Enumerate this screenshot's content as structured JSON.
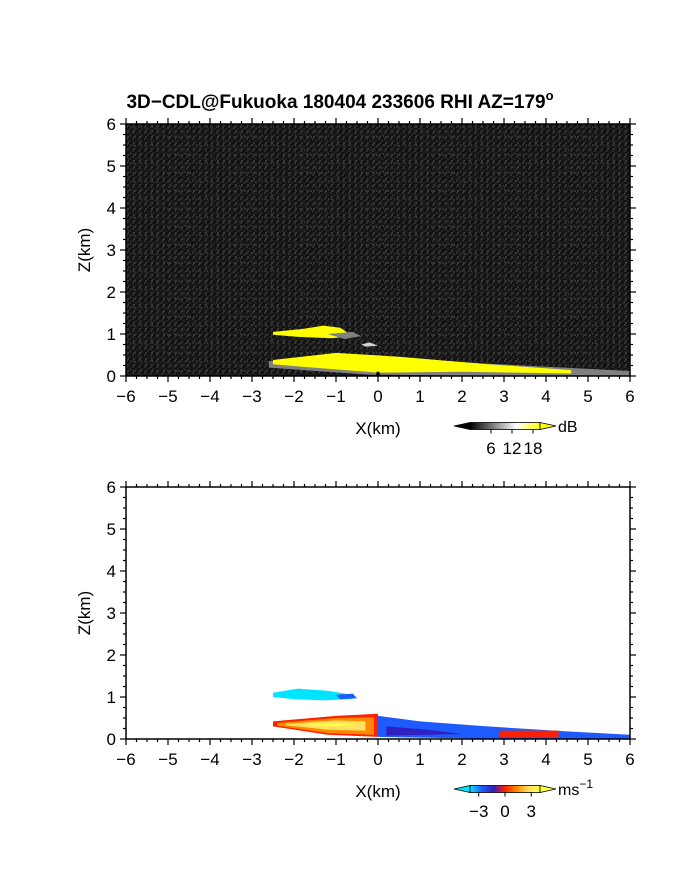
{
  "figure": {
    "title_main": "3D−CDL@Fukuoka 180404 233606 RHI AZ=179",
    "title_deg": "o"
  },
  "chart_data": [
    {
      "type": "heatmap",
      "panel": "reflectivity",
      "xlabel": "X(km)",
      "ylabel": "Z(km)",
      "xlim": [
        -6,
        6
      ],
      "ylim": [
        0,
        6
      ],
      "x_ticks": [
        "−6",
        "−5",
        "−4",
        "−3",
        "−2",
        "−1",
        "0",
        "1",
        "2",
        "3",
        "4",
        "5",
        "6"
      ],
      "y_ticks": [
        "0",
        "1",
        "2",
        "3",
        "4",
        "5",
        "6"
      ],
      "background": "noise (dark gray speckle)",
      "colorbar": {
        "unit": "dB",
        "tick_labels": [
          "6",
          "12",
          "18"
        ],
        "tick_values": [
          6,
          12,
          18
        ],
        "range": [
          0,
          20
        ],
        "colors": [
          "#000000",
          "#808080",
          "#ffffff",
          "#ffff00"
        ]
      },
      "features": [
        {
          "name": "low-level echo layer",
          "x_range": [
            -2.6,
            6.0
          ],
          "z_range": [
            0.0,
            0.4
          ],
          "value_db": "18+"
        },
        {
          "name": "elevated echo layer",
          "x_range": [
            -2.5,
            -0.5
          ],
          "z_range": [
            0.9,
            1.2
          ],
          "value_db": "18+"
        }
      ]
    },
    {
      "type": "heatmap",
      "panel": "radial velocity",
      "xlabel": "X(km)",
      "ylabel": "Z(km)",
      "xlim": [
        -6,
        6
      ],
      "ylim": [
        0,
        6
      ],
      "x_ticks": [
        "−6",
        "−5",
        "−4",
        "−3",
        "−2",
        "−1",
        "0",
        "1",
        "2",
        "3",
        "4",
        "5",
        "6"
      ],
      "y_ticks": [
        "0",
        "1",
        "2",
        "3",
        "4",
        "5",
        "6"
      ],
      "colorbar": {
        "unit": "ms",
        "unit_exp": "−1",
        "tick_labels": [
          "−3",
          "0",
          "3"
        ],
        "tick_values": [
          -3,
          0,
          3
        ],
        "range": [
          -4,
          4
        ],
        "colors": [
          "#00e5ff",
          "#1e5bff",
          "#3020c0",
          "#ff2000",
          "#ff8a00",
          "#ffe060",
          "#ffff40"
        ]
      },
      "features": [
        {
          "name": "elevated layer",
          "x_range": [
            -2.5,
            -0.5
          ],
          "z_range": [
            0.9,
            1.2
          ],
          "velocity_ms": -2.5
        },
        {
          "name": "low layer west",
          "x_range": [
            -2.5,
            0.0
          ],
          "z_range": [
            0.1,
            0.5
          ],
          "velocity_ms": 2.5
        },
        {
          "name": "low layer east",
          "x_range": [
            0.0,
            6.0
          ],
          "z_range": [
            0.0,
            0.4
          ],
          "velocity_ms": -2.5
        },
        {
          "name": "red patch",
          "x_range": [
            2.9,
            4.3
          ],
          "z_range": [
            0.0,
            0.2
          ],
          "velocity_ms": 0.5
        }
      ]
    }
  ]
}
